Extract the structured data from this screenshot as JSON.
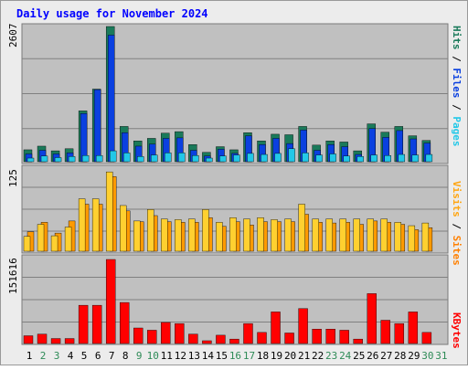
{
  "title": "Daily usage for November 2024",
  "colors": {
    "background": "#ececec",
    "plot_bg": "#c0c0c0",
    "gridline": "#808080",
    "title": "#0000ff",
    "hits": "#1a7a5a",
    "files": "#0a40e0",
    "pages": "#22c8e8",
    "visits": "#ffa510",
    "sites": "#ff8000",
    "visits_fill": "#ffd030",
    "sites_fill": "#ff9a00",
    "kbytes": "#ff0000",
    "day_weekday": "#000000",
    "day_weekend": "#2e8b57"
  },
  "panels": {
    "top": {
      "ymax_label": "2607",
      "legend": [
        "Pages",
        "Files",
        "Hits"
      ]
    },
    "middle": {
      "ymax_label": "125",
      "legend": [
        "Sites",
        "Visits"
      ]
    },
    "bottom": {
      "ymax_label": "151616",
      "legend": [
        "KBytes"
      ]
    }
  },
  "chart_data": [
    {
      "type": "bar",
      "title": "Daily usage for November 2024",
      "categories": [
        "1",
        "2",
        "3",
        "4",
        "5",
        "6",
        "7",
        "8",
        "9",
        "10",
        "11",
        "12",
        "13",
        "14",
        "15",
        "16",
        "17",
        "18",
        "19",
        "20",
        "21",
        "22",
        "23",
        "24",
        "25",
        "26",
        "27",
        "28",
        "29",
        "30",
        "31"
      ],
      "ylim": [
        0,
        2607
      ],
      "series": [
        {
          "name": "Hits",
          "values": [
            230,
            300,
            210,
            250,
            980,
            1400,
            2607,
            680,
            400,
            450,
            550,
            580,
            330,
            180,
            290,
            230,
            560,
            400,
            530,
            520,
            680,
            320,
            400,
            380,
            210,
            730,
            570,
            680,
            500,
            410,
            0
          ]
        },
        {
          "name": "Files",
          "values": [
            150,
            220,
            150,
            170,
            930,
            1390,
            2440,
            560,
            300,
            340,
            450,
            460,
            220,
            110,
            240,
            160,
            500,
            330,
            450,
            350,
            610,
            220,
            330,
            290,
            140,
            640,
            470,
            600,
            440,
            360,
            0
          ]
        },
        {
          "name": "Pages",
          "values": [
            70,
            110,
            80,
            100,
            120,
            120,
            210,
            170,
            100,
            130,
            170,
            170,
            120,
            70,
            110,
            130,
            160,
            140,
            160,
            250,
            170,
            130,
            150,
            110,
            100,
            130,
            120,
            140,
            130,
            140,
            0
          ]
        }
      ]
    },
    {
      "type": "bar",
      "categories": [
        "1",
        "2",
        "3",
        "4",
        "5",
        "6",
        "7",
        "8",
        "9",
        "10",
        "11",
        "12",
        "13",
        "14",
        "15",
        "16",
        "17",
        "18",
        "19",
        "20",
        "21",
        "22",
        "23",
        "24",
        "25",
        "26",
        "27",
        "28",
        "29",
        "30",
        "31"
      ],
      "ylim": [
        0,
        125
      ],
      "series": [
        {
          "name": "Visits",
          "values": [
            22,
            40,
            23,
            36,
            78,
            78,
            118,
            68,
            45,
            62,
            48,
            47,
            48,
            62,
            43,
            50,
            48,
            50,
            47,
            48,
            70,
            48,
            48,
            48,
            48,
            48,
            48,
            43,
            38,
            42,
            0
          ]
        },
        {
          "name": "Sites",
          "values": [
            29,
            43,
            27,
            45,
            70,
            70,
            111,
            60,
            44,
            53,
            44,
            43,
            43,
            50,
            37,
            44,
            39,
            44,
            44,
            44,
            55,
            43,
            42,
            43,
            40,
            45,
            43,
            40,
            32,
            35,
            0
          ]
        }
      ]
    },
    {
      "type": "bar",
      "categories": [
        "1",
        "2",
        "3",
        "4",
        "5",
        "6",
        "7",
        "8",
        "9",
        "10",
        "11",
        "12",
        "13",
        "14",
        "15",
        "16",
        "17",
        "18",
        "19",
        "20",
        "21",
        "22",
        "23",
        "24",
        "25",
        "26",
        "27",
        "28",
        "29",
        "30",
        "31"
      ],
      "ylim": [
        0,
        151616
      ],
      "series": [
        {
          "name": "KBytes",
          "values": [
            14000,
            17000,
            9000,
            9000,
            69000,
            69000,
            151616,
            74000,
            28000,
            24000,
            38000,
            36000,
            17000,
            5000,
            15000,
            8000,
            36000,
            20000,
            57000,
            19000,
            63000,
            26000,
            26000,
            24000,
            8000,
            90000,
            42000,
            36000,
            57000,
            20000,
            0
          ]
        }
      ]
    }
  ],
  "day_labels": [
    "1",
    "2",
    "3",
    "4",
    "5",
    "6",
    "7",
    "8",
    "9",
    "10",
    "11",
    "12",
    "13",
    "14",
    "15",
    "16",
    "17",
    "18",
    "19",
    "20",
    "21",
    "22",
    "23",
    "24",
    "25",
    "26",
    "27",
    "28",
    "29",
    "30",
    "31"
  ],
  "weekend_days": [
    2,
    3,
    9,
    10,
    16,
    17,
    23,
    24,
    30,
    31
  ]
}
